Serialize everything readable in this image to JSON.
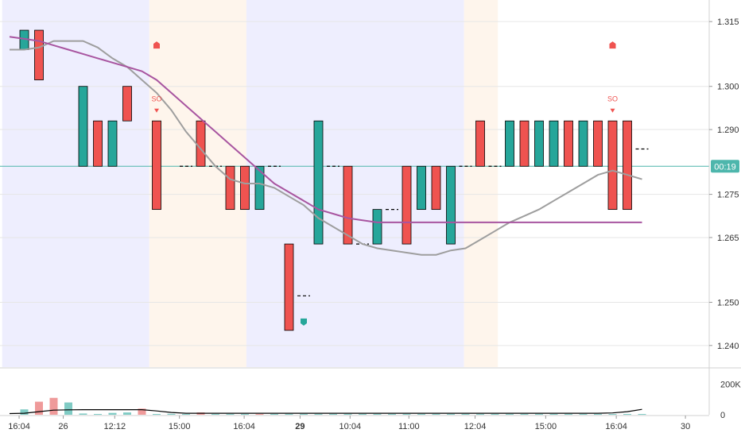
{
  "chart_data": {
    "type": "candlestick",
    "instrument_price_axis": {
      "ticks": [
        "1.315",
        "1.300",
        "1.290",
        "1.275",
        "1.265",
        "1.250",
        "1.240"
      ],
      "tick_values": [
        1.315,
        1.3,
        1.29,
        1.275,
        1.265,
        1.25,
        1.24
      ],
      "ylim": [
        1.235,
        1.32
      ]
    },
    "time_axis": {
      "ticks": [
        "16:04",
        "26",
        "12:12",
        "15:00",
        "16:04",
        "29",
        "10:04",
        "11:00",
        "12:04",
        "15:00",
        "16:04",
        "30"
      ],
      "bold": [
        "29"
      ]
    },
    "volume_axis": {
      "ticks": [
        "200K",
        "0"
      ],
      "tick_values": [
        200000,
        0
      ],
      "ylim": [
        0,
        300000
      ]
    },
    "current_price_tag": {
      "label": "00:19",
      "value": 1.2815,
      "color": "#4db6ac"
    },
    "sessions": [
      {
        "from": 0,
        "to": 10,
        "kind": "regular"
      },
      {
        "from": 10,
        "to": 16.6,
        "kind": "extended"
      },
      {
        "from": 16.6,
        "to": 31.4,
        "kind": "regular"
      },
      {
        "from": 31.4,
        "to": 33.7,
        "kind": "extended"
      }
    ],
    "candles": [
      {
        "i": 1,
        "o": 1.3085,
        "c": 1.313,
        "dir": "up"
      },
      {
        "i": 2,
        "o": 1.313,
        "c": 1.3015,
        "dir": "down"
      },
      {
        "i": 5,
        "o": 1.2815,
        "c": 1.3,
        "dir": "up"
      },
      {
        "i": 6,
        "o": 1.292,
        "c": 1.2815,
        "dir": "down"
      },
      {
        "i": 7,
        "o": 1.2815,
        "c": 1.292,
        "dir": "up"
      },
      {
        "i": 8,
        "o": 1.3,
        "c": 1.292,
        "dir": "down"
      },
      {
        "i": 10,
        "o": 1.292,
        "c": 1.2715,
        "dir": "down"
      },
      {
        "i": 12,
        "o": 1.2815,
        "c": 1.2815,
        "dir": "flat"
      },
      {
        "i": 13,
        "o": 1.292,
        "c": 1.2815,
        "dir": "down"
      },
      {
        "i": 14,
        "o": 1.2815,
        "c": 1.2815,
        "dir": "flat"
      },
      {
        "i": 15,
        "o": 1.2815,
        "c": 1.2715,
        "dir": "down"
      },
      {
        "i": 16,
        "o": 1.2815,
        "c": 1.2715,
        "dir": "down"
      },
      {
        "i": 17,
        "o": 1.2715,
        "c": 1.2815,
        "dir": "up"
      },
      {
        "i": 18,
        "o": 1.2815,
        "c": 1.2815,
        "dir": "flat"
      },
      {
        "i": 19,
        "o": 1.2635,
        "c": 1.2435,
        "dir": "down"
      },
      {
        "i": 20,
        "o": 1.2515,
        "c": 1.2515,
        "dir": "flat"
      },
      {
        "i": 21,
        "o": 1.2635,
        "c": 1.292,
        "dir": "up"
      },
      {
        "i": 22,
        "o": 1.2815,
        "c": 1.2815,
        "dir": "flat"
      },
      {
        "i": 23,
        "o": 1.2815,
        "c": 1.2635,
        "dir": "down"
      },
      {
        "i": 24,
        "o": 1.2635,
        "c": 1.2635,
        "dir": "flat"
      },
      {
        "i": 25,
        "o": 1.2635,
        "c": 1.2715,
        "dir": "up"
      },
      {
        "i": 26,
        "o": 1.2715,
        "c": 1.2715,
        "dir": "flat"
      },
      {
        "i": 27,
        "o": 1.2815,
        "c": 1.2635,
        "dir": "down"
      },
      {
        "i": 28,
        "o": 1.2715,
        "c": 1.2815,
        "dir": "up"
      },
      {
        "i": 29,
        "o": 1.2815,
        "c": 1.2715,
        "dir": "down"
      },
      {
        "i": 30,
        "o": 1.2635,
        "c": 1.2815,
        "dir": "up"
      },
      {
        "i": 31,
        "o": 1.2815,
        "c": 1.2815,
        "dir": "flat"
      },
      {
        "i": 32,
        "o": 1.292,
        "c": 1.2815,
        "dir": "down"
      },
      {
        "i": 33,
        "o": 1.2815,
        "c": 1.2815,
        "dir": "flat"
      },
      {
        "i": 34,
        "o": 1.2815,
        "c": 1.292,
        "dir": "up"
      },
      {
        "i": 35,
        "o": 1.292,
        "c": 1.2815,
        "dir": "down"
      },
      {
        "i": 36,
        "o": 1.2815,
        "c": 1.292,
        "dir": "up"
      },
      {
        "i": 37,
        "o": 1.2815,
        "c": 1.292,
        "dir": "up"
      },
      {
        "i": 38,
        "o": 1.292,
        "c": 1.2815,
        "dir": "down"
      },
      {
        "i": 39,
        "o": 1.2815,
        "c": 1.292,
        "dir": "up"
      },
      {
        "i": 40,
        "o": 1.292,
        "c": 1.2815,
        "dir": "down"
      },
      {
        "i": 41,
        "o": 1.292,
        "c": 1.2715,
        "dir": "down"
      },
      {
        "i": 42,
        "o": 1.292,
        "c": 1.2715,
        "dir": "down"
      },
      {
        "i": 43,
        "o": 1.2855,
        "c": 1.2855,
        "dir": "flat"
      }
    ],
    "ma_fast": [
      {
        "i": 0,
        "v": 1.3085
      },
      {
        "i": 1,
        "v": 1.3085
      },
      {
        "i": 2,
        "v": 1.309
      },
      {
        "i": 3,
        "v": 1.3105
      },
      {
        "i": 4,
        "v": 1.3105
      },
      {
        "i": 5,
        "v": 1.3105
      },
      {
        "i": 6,
        "v": 1.309
      },
      {
        "i": 7,
        "v": 1.3065
      },
      {
        "i": 8,
        "v": 1.3045
      },
      {
        "i": 9,
        "v": 1.3015
      },
      {
        "i": 10,
        "v": 1.2985
      },
      {
        "i": 11,
        "v": 1.2945
      },
      {
        "i": 12,
        "v": 1.2895
      },
      {
        "i": 13,
        "v": 1.2855
      },
      {
        "i": 14,
        "v": 1.2815
      },
      {
        "i": 15,
        "v": 1.2785
      },
      {
        "i": 16,
        "v": 1.2775
      },
      {
        "i": 17,
        "v": 1.2775
      },
      {
        "i": 18,
        "v": 1.2765
      },
      {
        "i": 19,
        "v": 1.2745
      },
      {
        "i": 20,
        "v": 1.2725
      },
      {
        "i": 21,
        "v": 1.2695
      },
      {
        "i": 22,
        "v": 1.2675
      },
      {
        "i": 23,
        "v": 1.2655
      },
      {
        "i": 24,
        "v": 1.2635
      },
      {
        "i": 25,
        "v": 1.2625
      },
      {
        "i": 26,
        "v": 1.262
      },
      {
        "i": 27,
        "v": 1.2615
      },
      {
        "i": 28,
        "v": 1.261
      },
      {
        "i": 29,
        "v": 1.261
      },
      {
        "i": 30,
        "v": 1.262
      },
      {
        "i": 31,
        "v": 1.2625
      },
      {
        "i": 32,
        "v": 1.2645
      },
      {
        "i": 33,
        "v": 1.2665
      },
      {
        "i": 34,
        "v": 1.2685
      },
      {
        "i": 35,
        "v": 1.27
      },
      {
        "i": 36,
        "v": 1.2715
      },
      {
        "i": 37,
        "v": 1.2735
      },
      {
        "i": 38,
        "v": 1.2755
      },
      {
        "i": 39,
        "v": 1.2775
      },
      {
        "i": 40,
        "v": 1.2795
      },
      {
        "i": 41,
        "v": 1.2805
      },
      {
        "i": 42,
        "v": 1.2795
      },
      {
        "i": 43,
        "v": 1.2785
      }
    ],
    "ma_slow": [
      {
        "i": 0,
        "v": 1.3115
      },
      {
        "i": 1,
        "v": 1.311
      },
      {
        "i": 2,
        "v": 1.3105
      },
      {
        "i": 3,
        "v": 1.3095
      },
      {
        "i": 4,
        "v": 1.3085
      },
      {
        "i": 5,
        "v": 1.3075
      },
      {
        "i": 6,
        "v": 1.3065
      },
      {
        "i": 7,
        "v": 1.3055
      },
      {
        "i": 8,
        "v": 1.3045
      },
      {
        "i": 9,
        "v": 1.3035
      },
      {
        "i": 10,
        "v": 1.3015
      },
      {
        "i": 11,
        "v": 1.2985
      },
      {
        "i": 12,
        "v": 1.2955
      },
      {
        "i": 13,
        "v": 1.2925
      },
      {
        "i": 14,
        "v": 1.2895
      },
      {
        "i": 15,
        "v": 1.2865
      },
      {
        "i": 16,
        "v": 1.2835
      },
      {
        "i": 17,
        "v": 1.2805
      },
      {
        "i": 18,
        "v": 1.2775
      },
      {
        "i": 19,
        "v": 1.2755
      },
      {
        "i": 20,
        "v": 1.2735
      },
      {
        "i": 21,
        "v": 1.2715
      },
      {
        "i": 22,
        "v": 1.2705
      },
      {
        "i": 23,
        "v": 1.2695
      },
      {
        "i": 24,
        "v": 1.269
      },
      {
        "i": 25,
        "v": 1.2685
      },
      {
        "i": 26,
        "v": 1.2685
      },
      {
        "i": 27,
        "v": 1.2685
      },
      {
        "i": 28,
        "v": 1.2685
      },
      {
        "i": 29,
        "v": 1.2685
      },
      {
        "i": 30,
        "v": 1.2685
      },
      {
        "i": 31,
        "v": 1.2685
      },
      {
        "i": 32,
        "v": 1.2685
      },
      {
        "i": 33,
        "v": 1.2685
      },
      {
        "i": 34,
        "v": 1.2685
      },
      {
        "i": 35,
        "v": 1.2685
      },
      {
        "i": 36,
        "v": 1.2685
      },
      {
        "i": 37,
        "v": 1.2685
      },
      {
        "i": 38,
        "v": 1.2685
      },
      {
        "i": 39,
        "v": 1.2685
      },
      {
        "i": 40,
        "v": 1.2685
      },
      {
        "i": 41,
        "v": 1.2685
      },
      {
        "i": 42,
        "v": 1.2685
      },
      {
        "i": 43,
        "v": 1.2685
      }
    ],
    "volumes": [
      {
        "i": 1,
        "v": 35000,
        "dir": "up"
      },
      {
        "i": 2,
        "v": 85000,
        "dir": "down"
      },
      {
        "i": 3,
        "v": 110000,
        "dir": "down"
      },
      {
        "i": 4,
        "v": 80000,
        "dir": "up"
      },
      {
        "i": 5,
        "v": 8000,
        "dir": "up"
      },
      {
        "i": 6,
        "v": 5000,
        "dir": "flat"
      },
      {
        "i": 7,
        "v": 12000,
        "dir": "up"
      },
      {
        "i": 8,
        "v": 15000,
        "dir": "up"
      },
      {
        "i": 9,
        "v": 40000,
        "dir": "down"
      },
      {
        "i": 10,
        "v": 5000,
        "dir": "flat"
      },
      {
        "i": 11,
        "v": 6000,
        "dir": "up"
      },
      {
        "i": 12,
        "v": 5000,
        "dir": "flat"
      },
      {
        "i": 13,
        "v": 15000,
        "dir": "down"
      },
      {
        "i": 14,
        "v": 5000,
        "dir": "flat"
      },
      {
        "i": 15,
        "v": 5000,
        "dir": "flat"
      },
      {
        "i": 16,
        "v": 5000,
        "dir": "up"
      },
      {
        "i": 17,
        "v": 5000,
        "dir": "down"
      },
      {
        "i": 18,
        "v": 5000,
        "dir": "flat"
      },
      {
        "i": 19,
        "v": 5000,
        "dir": "flat"
      },
      {
        "i": 20,
        "v": 5000,
        "dir": "flat"
      },
      {
        "i": 21,
        "v": 5000,
        "dir": "flat"
      },
      {
        "i": 22,
        "v": 5000,
        "dir": "flat"
      },
      {
        "i": 23,
        "v": 5000,
        "dir": "flat"
      },
      {
        "i": 24,
        "v": 5000,
        "dir": "flat"
      },
      {
        "i": 25,
        "v": 5000,
        "dir": "flat"
      },
      {
        "i": 26,
        "v": 5000,
        "dir": "flat"
      },
      {
        "i": 27,
        "v": 5000,
        "dir": "flat"
      },
      {
        "i": 28,
        "v": 5000,
        "dir": "flat"
      },
      {
        "i": 29,
        "v": 5000,
        "dir": "flat"
      },
      {
        "i": 30,
        "v": 5000,
        "dir": "flat"
      },
      {
        "i": 31,
        "v": 5000,
        "dir": "flat"
      },
      {
        "i": 32,
        "v": 5000,
        "dir": "flat"
      },
      {
        "i": 33,
        "v": 5000,
        "dir": "flat"
      },
      {
        "i": 34,
        "v": 5000,
        "dir": "flat"
      },
      {
        "i": 35,
        "v": 5000,
        "dir": "flat"
      },
      {
        "i": 36,
        "v": 5000,
        "dir": "flat"
      },
      {
        "i": 37,
        "v": 5000,
        "dir": "flat"
      },
      {
        "i": 38,
        "v": 5000,
        "dir": "flat"
      },
      {
        "i": 39,
        "v": 5000,
        "dir": "flat"
      },
      {
        "i": 40,
        "v": 5000,
        "dir": "flat"
      },
      {
        "i": 41,
        "v": 5000,
        "dir": "flat"
      },
      {
        "i": 42,
        "v": 5000,
        "dir": "flat"
      },
      {
        "i": 43,
        "v": 5000,
        "dir": "flat"
      }
    ],
    "volume_ma": [
      {
        "i": 0,
        "v": 8000
      },
      {
        "i": 1,
        "v": 10000
      },
      {
        "i": 2,
        "v": 20000
      },
      {
        "i": 3,
        "v": 30000
      },
      {
        "i": 4,
        "v": 32000
      },
      {
        "i": 5,
        "v": 33000
      },
      {
        "i": 6,
        "v": 33000
      },
      {
        "i": 7,
        "v": 33000
      },
      {
        "i": 8,
        "v": 33000
      },
      {
        "i": 9,
        "v": 33000
      },
      {
        "i": 10,
        "v": 25000
      },
      {
        "i": 11,
        "v": 15000
      },
      {
        "i": 12,
        "v": 10000
      },
      {
        "i": 13,
        "v": 10000
      },
      {
        "i": 14,
        "v": 10000
      },
      {
        "i": 15,
        "v": 10000
      },
      {
        "i": 16,
        "v": 10000
      },
      {
        "i": 17,
        "v": 10000
      },
      {
        "i": 18,
        "v": 10000
      },
      {
        "i": 19,
        "v": 10000
      },
      {
        "i": 20,
        "v": 10000
      },
      {
        "i": 21,
        "v": 10000
      },
      {
        "i": 22,
        "v": 10000
      },
      {
        "i": 23,
        "v": 10000
      },
      {
        "i": 24,
        "v": 10000
      },
      {
        "i": 25,
        "v": 10000
      },
      {
        "i": 26,
        "v": 10000
      },
      {
        "i": 27,
        "v": 10000
      },
      {
        "i": 28,
        "v": 10000
      },
      {
        "i": 29,
        "v": 10000
      },
      {
        "i": 30,
        "v": 10000
      },
      {
        "i": 31,
        "v": 10000
      },
      {
        "i": 32,
        "v": 10000
      },
      {
        "i": 33,
        "v": 10000
      },
      {
        "i": 34,
        "v": 10000
      },
      {
        "i": 35,
        "v": 10000
      },
      {
        "i": 36,
        "v": 10000
      },
      {
        "i": 37,
        "v": 10000
      },
      {
        "i": 38,
        "v": 10000
      },
      {
        "i": 39,
        "v": 10000
      },
      {
        "i": 40,
        "v": 10000
      },
      {
        "i": 41,
        "v": 12000
      },
      {
        "i": 42,
        "v": 20000
      },
      {
        "i": 43,
        "v": 35000
      }
    ],
    "markers": [
      {
        "i": 10,
        "type": "up-arrow",
        "v": 1.3095,
        "color": "#ef5350"
      },
      {
        "i": 10,
        "type": "so",
        "label": "SO",
        "v": 1.2965,
        "color": "#ef5350"
      },
      {
        "i": 20,
        "type": "down-arrow",
        "v": 1.2455,
        "color": "#26a69a"
      },
      {
        "i": 41,
        "type": "up-arrow",
        "v": 1.3095,
        "color": "#ef5350"
      },
      {
        "i": 41,
        "type": "so",
        "label": "SO",
        "v": 1.2965,
        "color": "#ef5350"
      }
    ],
    "colors": {
      "up": "#26a69a",
      "down": "#ef5350",
      "up_volume": "#80cbc4",
      "down_volume": "#ef9a9a",
      "regular_session_bg": "#eeeefe",
      "extended_session_bg": "#fef5ec",
      "ma_fast": "#9e9e9e",
      "ma_slow": "#a855a0",
      "volume_ma": "#000000",
      "current_price_line": "#4db6ac"
    }
  }
}
